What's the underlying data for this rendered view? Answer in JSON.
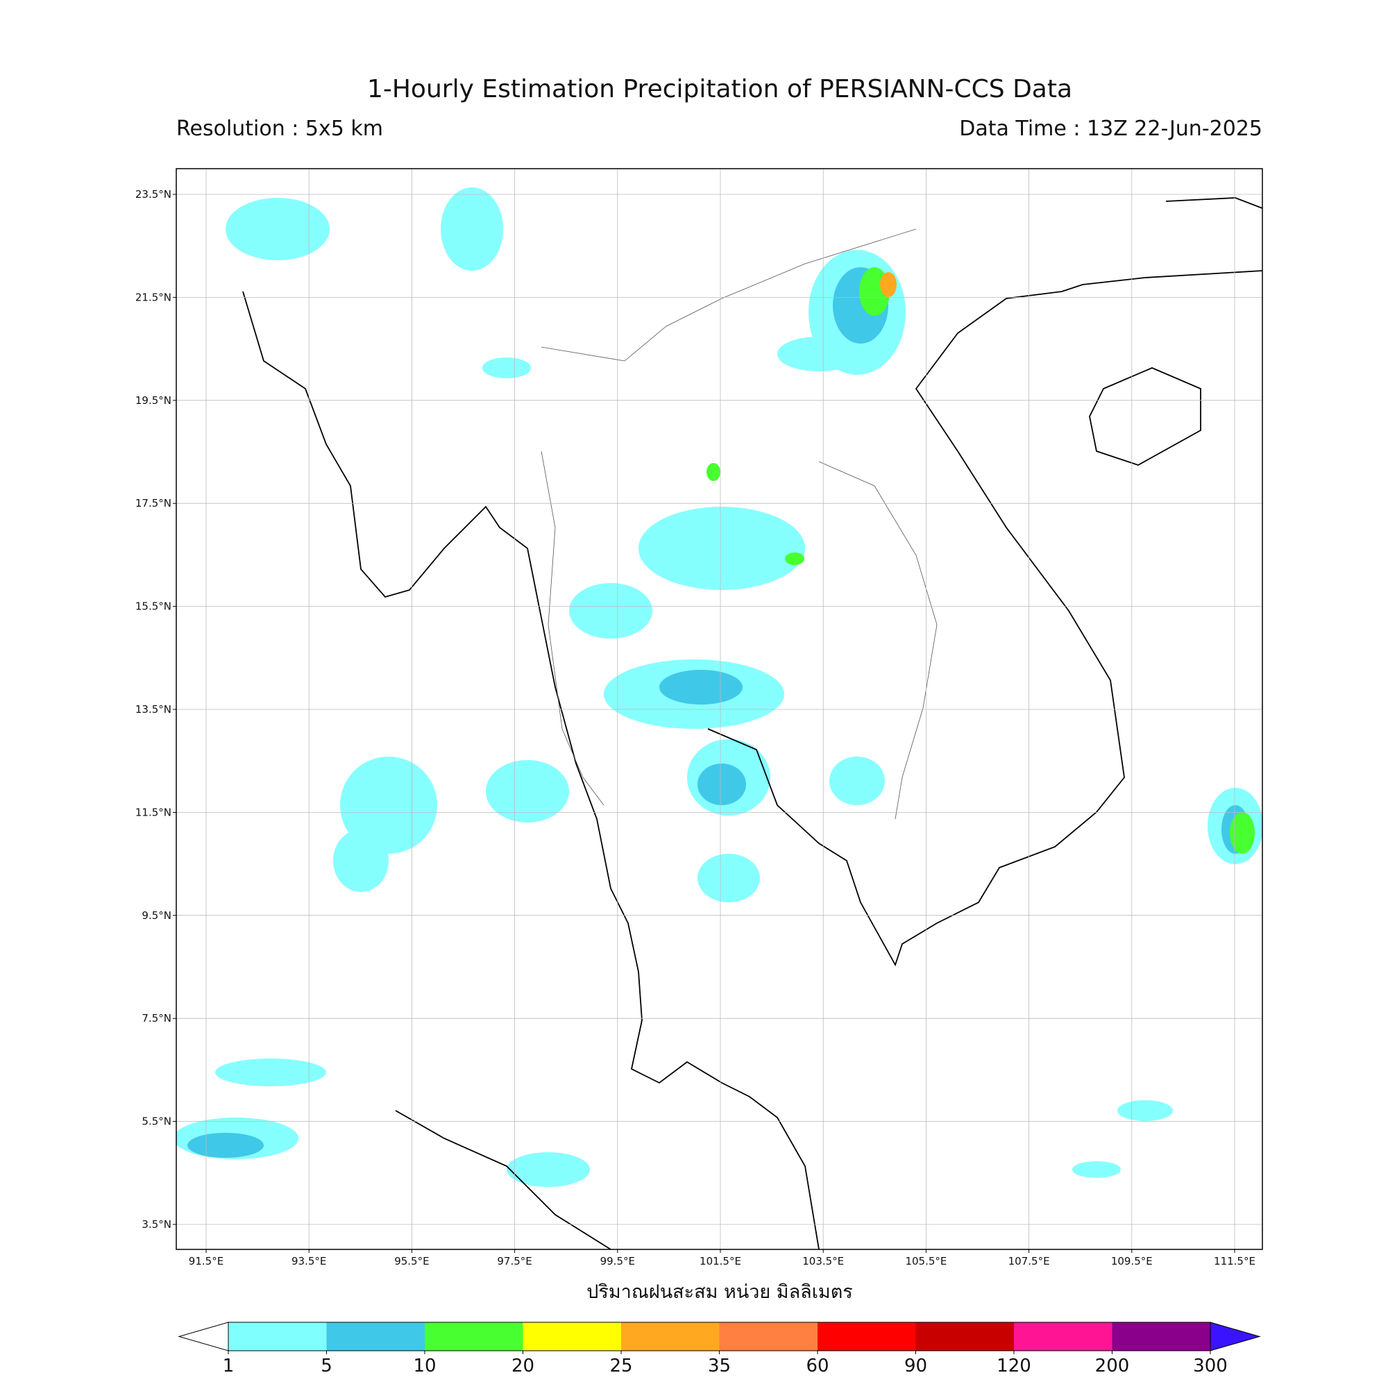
{
  "header": {
    "title": "1-Hourly Estimation Precipitation of PERSIANN-CCS Data",
    "resolution": "Resolution : 5x5 km",
    "data_time": "Data Time : 13Z 22-Jun-2025"
  },
  "map": {
    "lat_ticks": [
      {
        "value": 23.5,
        "label": "23.5°N"
      },
      {
        "value": 21.5,
        "label": "21.5°N"
      },
      {
        "value": 19.5,
        "label": "19.5°N"
      },
      {
        "value": 17.5,
        "label": "17.5°N"
      },
      {
        "value": 15.5,
        "label": "15.5°N"
      },
      {
        "value": 13.5,
        "label": "13.5°N"
      },
      {
        "value": 11.5,
        "label": "11.5°N"
      },
      {
        "value": 9.5,
        "label": "9.5°N"
      },
      {
        "value": 7.5,
        "label": "7.5°N"
      },
      {
        "value": 5.5,
        "label": "5.5°N"
      },
      {
        "value": 3.5,
        "label": "3.5°N"
      }
    ],
    "lon_ticks": [
      {
        "value": 91.5,
        "label": "91.5°E"
      },
      {
        "value": 93.5,
        "label": "93.5°E"
      },
      {
        "value": 95.5,
        "label": "95.5°E"
      },
      {
        "value": 97.5,
        "label": "97.5°E"
      },
      {
        "value": 99.5,
        "label": "99.5°E"
      },
      {
        "value": 101.5,
        "label": "101.5°E"
      },
      {
        "value": 103.5,
        "label": "103.5°E"
      },
      {
        "value": 105.5,
        "label": "105.5°E"
      },
      {
        "value": 107.5,
        "label": "107.5°E"
      },
      {
        "value": 109.5,
        "label": "109.5°E"
      },
      {
        "value": 111.5,
        "label": "111.5°E"
      }
    ],
    "xlabel": "ปริมาณฝนสะสม หน่วย มิลลิเมตร"
  },
  "colorbar": {
    "levels": [
      1,
      5,
      10,
      20,
      25,
      35,
      60,
      90,
      120,
      200,
      300
    ],
    "colors": [
      "#80ffff",
      "#40c8e8",
      "#48ff30",
      "#ffff00",
      "#ffa820",
      "#ff8040",
      "#ff0000",
      "#c80000",
      "#ff1493",
      "#8b008b"
    ],
    "over_color": "#3a14ff"
  }
}
